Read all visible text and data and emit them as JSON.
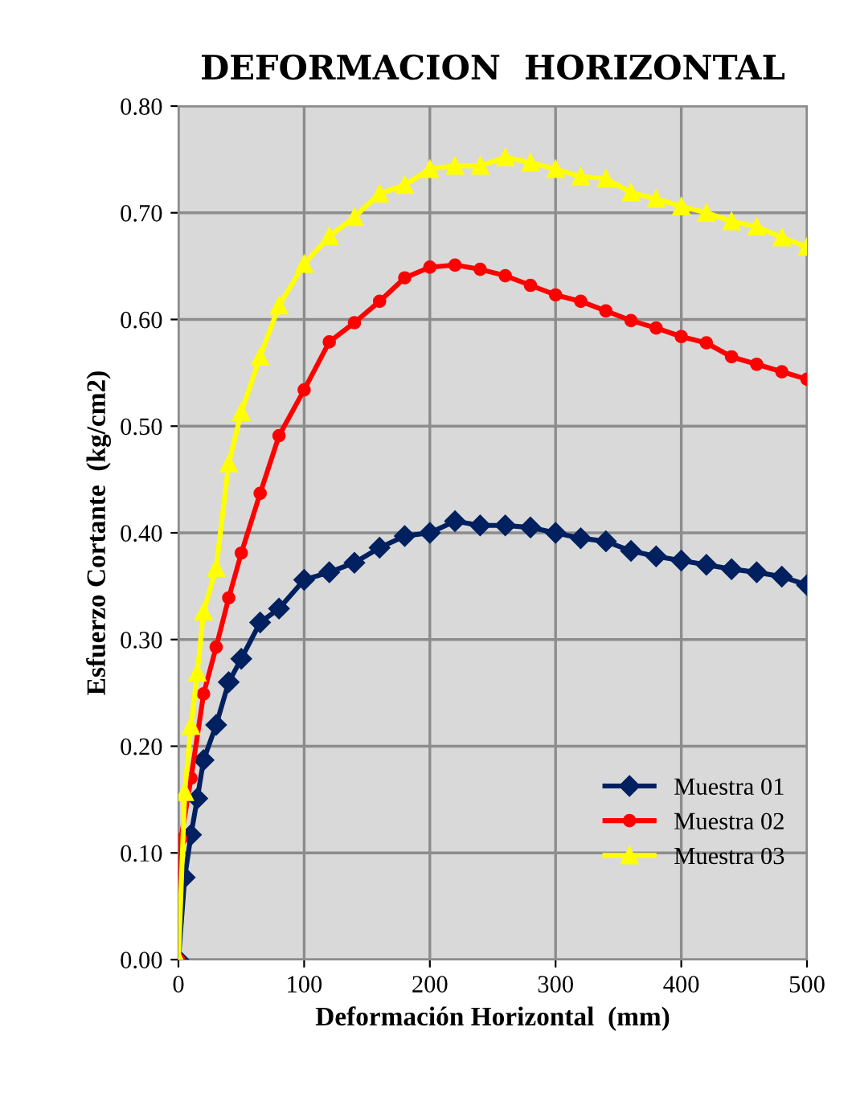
{
  "chart_data": {
    "type": "line",
    "title": "DEFORMACION  HORIZONTAL",
    "xlabel": "Deformación Horizontal  (mm)",
    "ylabel": "Esfuerzo Cortante  (kg/cm2)",
    "xlim": [
      0,
      500
    ],
    "xticks": [
      0,
      100,
      200,
      300,
      400,
      500
    ],
    "ylim": [
      0,
      0.8
    ],
    "yticks": [
      {
        "value": 0,
        "label": "0.00"
      },
      {
        "value": 0.1,
        "label": "0.10"
      },
      {
        "value": 0.2,
        "label": "0.20"
      },
      {
        "value": 0.3,
        "label": "0.30"
      },
      {
        "value": 0.4,
        "label": "0.40"
      },
      {
        "value": 0.5,
        "label": "0.50"
      },
      {
        "value": 0.6,
        "label": "0.60"
      },
      {
        "value": 0.7,
        "label": "0.70"
      },
      {
        "value": 0.8,
        "label": "0.80"
      }
    ],
    "grid": true,
    "legend": "bottom right",
    "series": [
      {
        "name": "Muestra 01",
        "color": "#002060",
        "marker": "diamond",
        "x": [
          0,
          5,
          10,
          15,
          20,
          30,
          40,
          50,
          65,
          80,
          100,
          120,
          140,
          160,
          180,
          200,
          220,
          240,
          260,
          280,
          300,
          320,
          340,
          360,
          380,
          400,
          420,
          440,
          460,
          480,
          500
        ],
        "values": [
          0,
          0.077,
          0.117,
          0.151,
          0.187,
          0.22,
          0.26,
          0.282,
          0.316,
          0.329,
          0.356,
          0.363,
          0.372,
          0.386,
          0.397,
          0.4,
          0.411,
          0.407,
          0.407,
          0.405,
          0.4,
          0.395,
          0.392,
          0.383,
          0.378,
          0.374,
          0.37,
          0.366,
          0.363,
          0.359,
          0.351
        ]
      },
      {
        "name": "Muestra 02",
        "color": "#ff0000",
        "marker": "circle",
        "x": [
          0,
          2,
          10,
          20,
          30,
          40,
          50,
          65,
          80,
          100,
          120,
          140,
          160,
          180,
          200,
          220,
          240,
          260,
          280,
          300,
          320,
          340,
          360,
          380,
          400,
          420,
          440,
          460,
          480,
          500
        ],
        "values": [
          0,
          0.113,
          0.17,
          0.249,
          0.293,
          0.339,
          0.381,
          0.437,
          0.491,
          0.534,
          0.579,
          0.597,
          0.617,
          0.639,
          0.649,
          0.651,
          0.647,
          0.641,
          0.632,
          0.623,
          0.617,
          0.608,
          0.599,
          0.592,
          0.584,
          0.578,
          0.565,
          0.558,
          0.551,
          0.544
        ]
      },
      {
        "name": "Muestra 03",
        "color": "#ffff00",
        "marker": "triangle",
        "x": [
          0,
          5,
          10,
          15,
          20,
          30,
          40,
          50,
          65,
          80,
          100,
          120,
          140,
          160,
          180,
          200,
          220,
          240,
          260,
          280,
          300,
          320,
          340,
          360,
          380,
          400,
          420,
          440,
          460,
          480,
          500
        ],
        "values": [
          0,
          0.157,
          0.219,
          0.269,
          0.326,
          0.367,
          0.465,
          0.513,
          0.565,
          0.613,
          0.652,
          0.678,
          0.696,
          0.718,
          0.726,
          0.741,
          0.744,
          0.744,
          0.752,
          0.747,
          0.741,
          0.734,
          0.732,
          0.719,
          0.713,
          0.706,
          0.7,
          0.692,
          0.687,
          0.677,
          0.668
        ]
      }
    ]
  }
}
